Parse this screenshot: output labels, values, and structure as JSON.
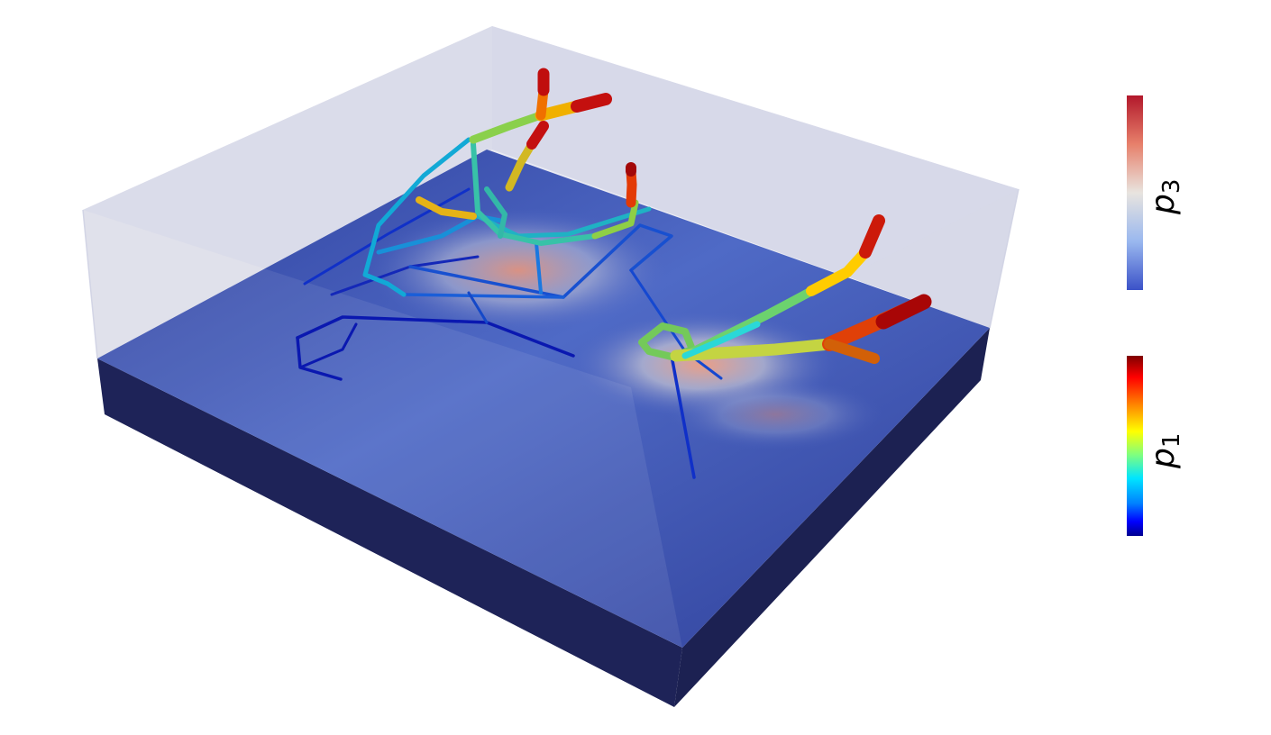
{
  "colorbars": [
    {
      "label_base": "p",
      "label_sub": "3",
      "colormap": "coolwarm"
    },
    {
      "label_base": "p",
      "label_sub": "1",
      "colormap": "jet"
    }
  ],
  "colors": {
    "slab_top": "#3b52b8",
    "slab_side": "#1e2358",
    "box_glass": "#d4d7e8",
    "hot_spot": "#e89278"
  }
}
